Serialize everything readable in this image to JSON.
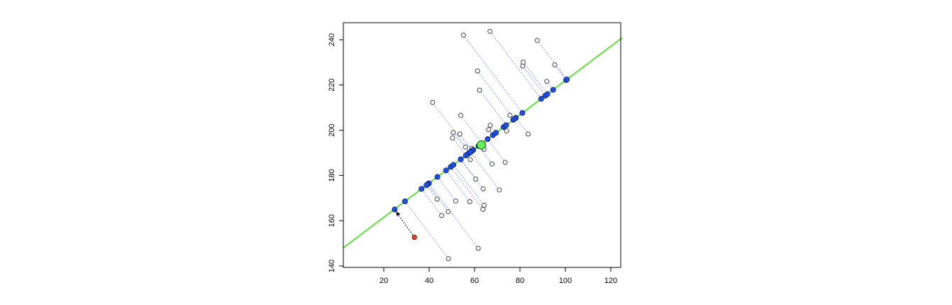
{
  "chart_data": {
    "type": "scatter",
    "title": "",
    "xlabel": "",
    "ylabel": "",
    "xlim": [
      2,
      125
    ],
    "ylim": [
      138,
      247
    ],
    "x_ticks": [
      "20",
      "40",
      "60",
      "80",
      "100",
      "120"
    ],
    "y_ticks": [
      "140",
      "160",
      "180",
      "200",
      "220",
      "240"
    ],
    "grid": false,
    "legend": "none",
    "colors": {
      "fit_line": "#5fdf3f",
      "projected_points": "#1f4fdd",
      "original_points": "#ffffff",
      "projection_lines": "#8f9df0",
      "highlight_point": "#d8452f",
      "mean_point": "#66ee55"
    },
    "fit_line": {
      "intercept": 146.4,
      "slope": 0.7555
    },
    "mean_point": {
      "x": 63,
      "y": 193.5
    },
    "highlight_point": {
      "x": 33.5,
      "y": 152.7
    },
    "highlight_projection": {
      "x": 24.8,
      "y": 165.0
    },
    "original_points": [
      {
        "x": 48.5,
        "y": 143.2
      },
      {
        "x": 61.6,
        "y": 147.8
      },
      {
        "x": 45.5,
        "y": 162.3
      },
      {
        "x": 48.4,
        "y": 164.0
      },
      {
        "x": 43.5,
        "y": 169.5
      },
      {
        "x": 51.7,
        "y": 168.7
      },
      {
        "x": 57.9,
        "y": 168.4
      },
      {
        "x": 63.7,
        "y": 165.0
      },
      {
        "x": 64.2,
        "y": 166.8
      },
      {
        "x": 70.9,
        "y": 173.6
      },
      {
        "x": 63.8,
        "y": 174.1
      },
      {
        "x": 60.5,
        "y": 178.4
      },
      {
        "x": 67.7,
        "y": 185.1
      },
      {
        "x": 73.5,
        "y": 185.8
      },
      {
        "x": 58.1,
        "y": 187.0
      },
      {
        "x": 56.0,
        "y": 192.6
      },
      {
        "x": 58.8,
        "y": 192.0
      },
      {
        "x": 64.2,
        "y": 191.6
      },
      {
        "x": 50.3,
        "y": 196.6
      },
      {
        "x": 53.5,
        "y": 198.3
      },
      {
        "x": 50.6,
        "y": 199.0
      },
      {
        "x": 74.1,
        "y": 199.7
      },
      {
        "x": 66.2,
        "y": 200.3
      },
      {
        "x": 66.9,
        "y": 202.2
      },
      {
        "x": 83.6,
        "y": 198.3
      },
      {
        "x": 53.9,
        "y": 206.6
      },
      {
        "x": 75.6,
        "y": 206.6
      },
      {
        "x": 41.5,
        "y": 212.3
      },
      {
        "x": 62.2,
        "y": 217.7
      },
      {
        "x": 91.8,
        "y": 221.6
      },
      {
        "x": 61.3,
        "y": 226.2
      },
      {
        "x": 81.2,
        "y": 228.4
      },
      {
        "x": 81.4,
        "y": 230.1
      },
      {
        "x": 95.3,
        "y": 228.9
      },
      {
        "x": 55.1,
        "y": 242.0
      },
      {
        "x": 66.8,
        "y": 243.7
      },
      {
        "x": 87.6,
        "y": 239.7
      }
    ]
  }
}
